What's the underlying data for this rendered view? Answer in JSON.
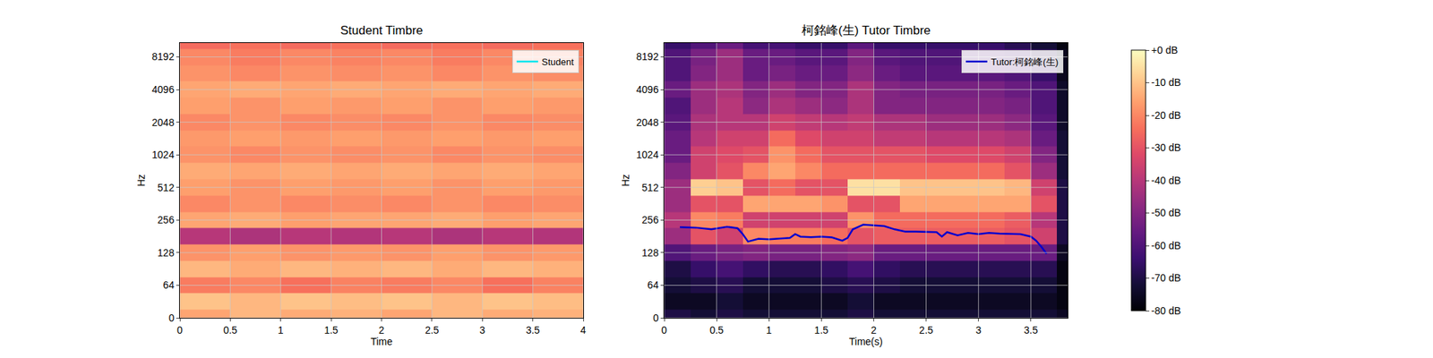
{
  "chart_data": [
    {
      "type": "heatmap",
      "title": "Student Timbre",
      "x_label": "Time",
      "y_label": "Hz",
      "log": "y",
      "grid": true,
      "legend": "upper right",
      "x": [
        0.25,
        0.75,
        1.25,
        1.75,
        2.25,
        2.75,
        3.25,
        3.75
      ],
      "y": [
        0,
        32,
        64,
        91,
        128,
        181,
        256,
        362,
        512,
        724,
        1024,
        1448,
        2048,
        2896,
        4096,
        5793,
        8192,
        11585
      ],
      "cells": [
        [
          -15,
          -12,
          -14,
          -13,
          -15,
          -12,
          -14,
          -13
        ],
        [
          -10,
          -12,
          -10,
          -11,
          -10,
          -12,
          -10,
          -11
        ],
        [
          -22,
          -20,
          -24,
          -21,
          -22,
          -20,
          -24,
          -21
        ],
        [
          -12,
          -14,
          -12,
          -13,
          -12,
          -14,
          -12,
          -13
        ],
        [
          -18,
          -16,
          -18,
          -17,
          -18,
          -16,
          -18,
          -17
        ],
        [
          -40,
          -42,
          -40,
          -41,
          -40,
          -42,
          -40,
          -41
        ],
        [
          -15,
          -14,
          -16,
          -15,
          -15,
          -14,
          -16,
          -15
        ],
        [
          -20,
          -18,
          -20,
          -19,
          -20,
          -18,
          -20,
          -19
        ],
        [
          -16,
          -18,
          -16,
          -17,
          -16,
          -18,
          -16,
          -17
        ],
        [
          -14,
          -15,
          -14,
          -15,
          -14,
          -15,
          -14,
          -15
        ],
        [
          -18,
          -20,
          -18,
          -19,
          -18,
          -20,
          -18,
          -19
        ],
        [
          -17,
          -16,
          -17,
          -16,
          -17,
          -16,
          -17,
          -16
        ],
        [
          -20,
          -18,
          -20,
          -19,
          -20,
          -18,
          -20,
          -19
        ],
        [
          -16,
          -18,
          -16,
          -17,
          -16,
          -18,
          -16,
          -17
        ],
        [
          -15,
          -14,
          -15,
          -14,
          -15,
          -14,
          -15,
          -14
        ],
        [
          -18,
          -20,
          -18,
          -19,
          -18,
          -20,
          -18,
          -19
        ],
        [
          -20,
          -22,
          -20,
          -21,
          -20,
          -22,
          -20,
          -21
        ],
        [
          -25,
          -24,
          -25,
          -24,
          -25,
          -24,
          -25,
          -24
        ]
      ],
      "xlim": [
        0,
        4
      ],
      "xticks": [
        0,
        0.5,
        1,
        1.5,
        2,
        2.5,
        3,
        3.5,
        4
      ],
      "ylim": [
        0,
        11025
      ],
      "yticks": [
        0,
        64,
        128,
        256,
        512,
        1024,
        2048,
        4096,
        8192
      ],
      "series": [
        {
          "name": "Student",
          "color": "#00e5ee",
          "x": [
            0,
            4
          ],
          "values": [
            null,
            null
          ]
        }
      ]
    },
    {
      "type": "heatmap",
      "title": "柯銘峰(生) Tutor Timbre",
      "x_label": "Time(s)",
      "y_label": "Hz",
      "log": "y",
      "grid": true,
      "legend": "upper right",
      "x": [
        0.125,
        0.375,
        0.625,
        0.875,
        1.125,
        1.375,
        1.625,
        1.875,
        2.125,
        2.375,
        2.625,
        2.875,
        3.125,
        3.375,
        3.625,
        3.875
      ],
      "y": [
        0,
        32,
        64,
        91,
        128,
        181,
        256,
        362,
        512,
        724,
        1024,
        1448,
        2048,
        2896,
        4096,
        5793,
        8192,
        11585
      ],
      "cells": [
        [
          -70,
          -72,
          -70,
          -72,
          -72,
          -72,
          -72,
          -70,
          -72,
          -72,
          -72,
          -72,
          -72,
          -72,
          -72,
          -75
        ],
        [
          -75,
          -75,
          -72,
          -75,
          -75,
          -75,
          -75,
          -72,
          -75,
          -75,
          -75,
          -75,
          -75,
          -75,
          -75,
          -78
        ],
        [
          -72,
          -70,
          -68,
          -72,
          -72,
          -72,
          -70,
          -68,
          -70,
          -72,
          -72,
          -72,
          -72,
          -72,
          -72,
          -78
        ],
        [
          -70,
          -65,
          -62,
          -66,
          -68,
          -68,
          -66,
          -62,
          -66,
          -68,
          -68,
          -68,
          -68,
          -68,
          -68,
          -78
        ],
        [
          -60,
          -55,
          -52,
          -50,
          -52,
          -52,
          -50,
          -48,
          -55,
          -55,
          -55,
          -55,
          -55,
          -55,
          -55,
          -75
        ],
        [
          -45,
          -30,
          -35,
          -20,
          -22,
          -22,
          -25,
          -30,
          -28,
          -28,
          -28,
          -28,
          -28,
          -30,
          -35,
          -70
        ],
        [
          -40,
          -20,
          -22,
          -35,
          -35,
          -35,
          -35,
          -18,
          -25,
          -25,
          -25,
          -25,
          -25,
          -28,
          -40,
          -70
        ],
        [
          -45,
          -30,
          -30,
          -15,
          -15,
          -15,
          -18,
          -30,
          -30,
          -15,
          -15,
          -15,
          -15,
          -15,
          -30,
          -70
        ],
        [
          -45,
          -8,
          -10,
          -30,
          -25,
          -30,
          -30,
          -5,
          -5,
          -10,
          -10,
          -10,
          -10,
          -12,
          -35,
          -70
        ],
        [
          -50,
          -35,
          -30,
          -20,
          -15,
          -20,
          -25,
          -25,
          -25,
          -25,
          -25,
          -25,
          -25,
          -30,
          -45,
          -72
        ],
        [
          -55,
          -35,
          -32,
          -30,
          -18,
          -25,
          -30,
          -30,
          -30,
          -30,
          -32,
          -32,
          -32,
          -35,
          -50,
          -72
        ],
        [
          -55,
          -40,
          -35,
          -35,
          -25,
          -32,
          -35,
          -35,
          -38,
          -38,
          -40,
          -40,
          -40,
          -42,
          -55,
          -72
        ],
        [
          -58,
          -42,
          -40,
          -40,
          -35,
          -38,
          -40,
          -38,
          -42,
          -42,
          -45,
          -45,
          -45,
          -48,
          -58,
          -74
        ],
        [
          -60,
          -45,
          -40,
          -48,
          -42,
          -45,
          -48,
          -42,
          -50,
          -50,
          -50,
          -50,
          -50,
          -52,
          -60,
          -74
        ],
        [
          -55,
          -45,
          -42,
          -50,
          -45,
          -50,
          -50,
          -42,
          -50,
          -52,
          -52,
          -52,
          -52,
          -55,
          -60,
          -74
        ],
        [
          -60,
          -50,
          -45,
          -55,
          -52,
          -55,
          -55,
          -48,
          -55,
          -58,
          -58,
          -58,
          -58,
          -60,
          -65,
          -76
        ],
        [
          -60,
          -52,
          -45,
          -55,
          -55,
          -58,
          -58,
          -50,
          -58,
          -60,
          -60,
          -60,
          -60,
          -62,
          -68,
          -76
        ],
        [
          -65,
          -60,
          -55,
          -62,
          -62,
          -65,
          -65,
          -58,
          -65,
          -65,
          -65,
          -65,
          -65,
          -68,
          -72,
          -78
        ]
      ],
      "xlim": [
        0,
        3.85
      ],
      "xticks": [
        0,
        0.5,
        1,
        1.5,
        2,
        2.5,
        3,
        3.5
      ],
      "ylim": [
        0,
        11025
      ],
      "yticks": [
        0,
        64,
        128,
        256,
        512,
        1024,
        2048,
        4096,
        8192
      ],
      "series": [
        {
          "name": "Tutor:柯銘峰(生)",
          "color": "#0000cd",
          "x": [
            0.15,
            0.3,
            0.45,
            0.6,
            0.7,
            0.75,
            0.8,
            0.9,
            1.0,
            1.1,
            1.2,
            1.25,
            1.3,
            1.4,
            1.5,
            1.6,
            1.7,
            1.75,
            1.8,
            1.9,
            2.0,
            2.1,
            2.2,
            2.3,
            2.4,
            2.5,
            2.6,
            2.65,
            2.7,
            2.8,
            2.9,
            3.0,
            3.1,
            3.2,
            3.3,
            3.4,
            3.5,
            3.55,
            3.6,
            3.65
          ],
          "values": [
            220,
            218,
            210,
            222,
            215,
            190,
            162,
            172,
            170,
            172,
            175,
            190,
            180,
            178,
            180,
            177,
            165,
            175,
            210,
            232,
            228,
            225,
            210,
            200,
            200,
            200,
            198,
            180,
            198,
            185,
            195,
            190,
            195,
            192,
            192,
            190,
            180,
            165,
            145,
            125
          ]
        }
      ],
      "colorbar": {
        "range": [
          -80,
          0
        ],
        "ticks": [
          {
            "value": -80,
            "label": "-80 dB"
          },
          {
            "value": -70,
            "label": "-70 dB"
          },
          {
            "value": -60,
            "label": "-60 dB"
          },
          {
            "value": -50,
            "label": "-50 dB"
          },
          {
            "value": -40,
            "label": "-40 dB"
          },
          {
            "value": -30,
            "label": "-30 dB"
          },
          {
            "value": -20,
            "label": "-20 dB"
          },
          {
            "value": -10,
            "label": "-10 dB"
          },
          {
            "value": 0,
            "label": "+0 dB"
          }
        ]
      }
    }
  ]
}
